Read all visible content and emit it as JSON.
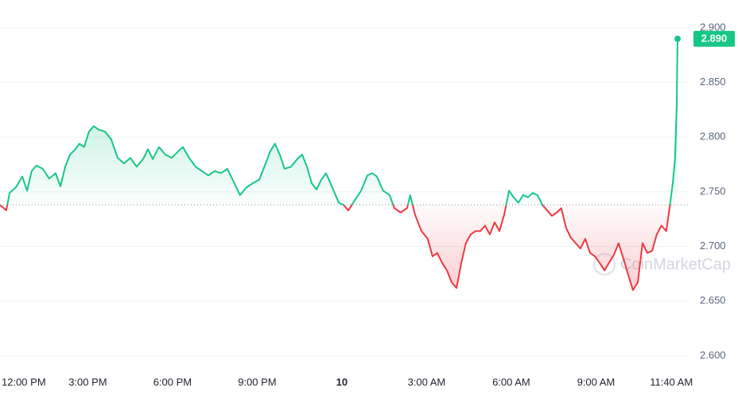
{
  "chart_data": {
    "type": "line",
    "x": [
      -0.11,
      0.11,
      0.23,
      0.45,
      0.68,
      0.85,
      1.01,
      1.18,
      1.41,
      1.63,
      1.86,
      2.03,
      2.2,
      2.37,
      2.56,
      2.7,
      2.87,
      3.04,
      3.21,
      3.38,
      3.61,
      3.83,
      4.06,
      4.28,
      4.51,
      4.73,
      4.96,
      5.13,
      5.3,
      5.52,
      5.75,
      5.97,
      6.2,
      6.37,
      6.59,
      6.82,
      7.04,
      7.27,
      7.49,
      7.72,
      7.94,
      8.17,
      8.39,
      8.62,
      8.85,
      9.07,
      9.3,
      9.46,
      9.63,
      9.8,
      9.97,
      10.2,
      10.42,
      10.59,
      10.76,
      10.93,
      11.1,
      11.27,
      11.44,
      11.66,
      11.89,
      12.06,
      12.23,
      12.45,
      12.68,
      12.9,
      13.07,
      13.24,
      13.46,
      13.69,
      13.86,
      14.08,
      14.31,
      14.42,
      14.59,
      14.82,
      15.04,
      15.21,
      15.38,
      15.55,
      15.72,
      15.89,
      16.06,
      16.23,
      16.39,
      16.56,
      16.73,
      16.9,
      17.07,
      17.24,
      17.41,
      17.58,
      17.75,
      17.92,
      18.08,
      18.25,
      18.42,
      18.59,
      18.76,
      18.93,
      19.1,
      19.27,
      19.44,
      19.61,
      19.77,
      19.94,
      20.11,
      20.28,
      20.45,
      20.62,
      20.79,
      20.96,
      21.13,
      21.3,
      21.46,
      21.63,
      21.8,
      21.97,
      22.14,
      22.31,
      22.48,
      22.65,
      22.82,
      22.99,
      23.15,
      23.32,
      23.49,
      23.61,
      23.72,
      23.8,
      23.86,
      23.89
    ],
    "values": [
      2.738,
      2.733,
      2.749,
      2.754,
      2.764,
      2.751,
      2.769,
      2.774,
      2.771,
      2.762,
      2.767,
      2.755,
      2.773,
      2.784,
      2.789,
      2.794,
      2.791,
      2.805,
      2.81,
      2.807,
      2.805,
      2.798,
      2.781,
      2.776,
      2.781,
      2.773,
      2.78,
      2.789,
      2.78,
      2.791,
      2.784,
      2.781,
      2.787,
      2.791,
      2.781,
      2.773,
      2.769,
      2.765,
      2.769,
      2.767,
      2.771,
      2.759,
      2.747,
      2.754,
      2.758,
      2.761,
      2.776,
      2.787,
      2.794,
      2.784,
      2.771,
      2.773,
      2.78,
      2.784,
      2.773,
      2.758,
      2.752,
      2.761,
      2.767,
      2.754,
      2.74,
      2.738,
      2.733,
      2.742,
      2.751,
      2.765,
      2.767,
      2.764,
      2.751,
      2.747,
      2.735,
      2.731,
      2.735,
      2.747,
      2.729,
      2.714,
      2.707,
      2.691,
      2.694,
      2.685,
      2.678,
      2.667,
      2.662,
      2.685,
      2.703,
      2.711,
      2.714,
      2.714,
      2.719,
      2.711,
      2.722,
      2.714,
      2.729,
      2.751,
      2.745,
      2.74,
      2.747,
      2.745,
      2.749,
      2.747,
      2.738,
      2.733,
      2.728,
      2.731,
      2.735,
      2.717,
      2.708,
      2.703,
      2.698,
      2.707,
      2.694,
      2.691,
      2.685,
      2.678,
      2.685,
      2.692,
      2.703,
      2.689,
      2.674,
      2.66,
      2.667,
      2.703,
      2.694,
      2.696,
      2.711,
      2.719,
      2.714,
      2.736,
      2.758,
      2.78,
      2.831,
      2.89
    ],
    "last_value_label": "2.890",
    "reference_line": 2.738,
    "up_color": "#16c784",
    "down_color": "#ea3943",
    "watermark": "CoinMarketCap",
    "xlim": [
      -0.11,
      24.34
    ],
    "xticks": [
      {
        "value": 0,
        "label": "12:00 PM"
      },
      {
        "value": 3,
        "label": "3:00 PM"
      },
      {
        "value": 6,
        "label": "6:00 PM"
      },
      {
        "value": 9,
        "label": "9:00 PM"
      },
      {
        "value": 12,
        "label": "10"
      },
      {
        "value": 15,
        "label": "3:00 AM"
      },
      {
        "value": 18,
        "label": "6:00 AM"
      },
      {
        "value": 21,
        "label": "9:00 AM"
      },
      {
        "value": 23.67,
        "label": "11:40 AM"
      }
    ],
    "ylim": [
      2.589,
      2.9255
    ],
    "yticks": [
      {
        "value": 2.6,
        "label": "2.600"
      },
      {
        "value": 2.65,
        "label": "2.650"
      },
      {
        "value": 2.7,
        "label": "2.700"
      },
      {
        "value": 2.75,
        "label": "2.750"
      },
      {
        "value": 2.8,
        "label": "2.800"
      },
      {
        "value": 2.85,
        "label": "2.850"
      },
      {
        "value": 2.9,
        "label": "2.900"
      }
    ],
    "grid": true
  }
}
